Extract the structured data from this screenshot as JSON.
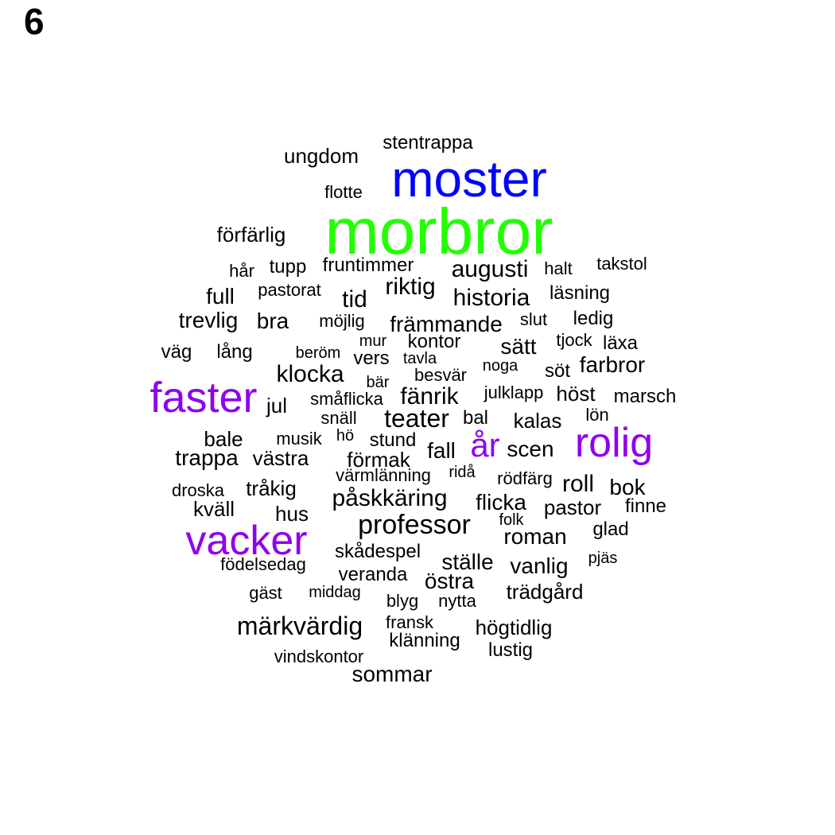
{
  "panel_label": "6",
  "colors": {
    "primary": "#22ff00",
    "secondary": "#0000ff",
    "accent": "#8f00ee",
    "default": "#000000"
  },
  "words": [
    {
      "text": "morbror",
      "weight": "primary"
    },
    {
      "text": "moster",
      "weight": "secondary"
    },
    {
      "text": "faster",
      "weight": "accent"
    },
    {
      "text": "vacker",
      "weight": "accent"
    },
    {
      "text": "rolig",
      "weight": "accent"
    },
    {
      "text": "år",
      "weight": "accent"
    },
    {
      "text": "stentrappa"
    },
    {
      "text": "ungdom"
    },
    {
      "text": "flotte"
    },
    {
      "text": "förfärlig"
    },
    {
      "text": "hår"
    },
    {
      "text": "tupp"
    },
    {
      "text": "fruntimmer"
    },
    {
      "text": "augusti"
    },
    {
      "text": "halt"
    },
    {
      "text": "takstol"
    },
    {
      "text": "full"
    },
    {
      "text": "pastorat"
    },
    {
      "text": "riktig"
    },
    {
      "text": "tid"
    },
    {
      "text": "historia"
    },
    {
      "text": "läsning"
    },
    {
      "text": "trevlig"
    },
    {
      "text": "bra"
    },
    {
      "text": "möjlig"
    },
    {
      "text": "främmande"
    },
    {
      "text": "slut"
    },
    {
      "text": "ledig"
    },
    {
      "text": "väg"
    },
    {
      "text": "lång"
    },
    {
      "text": "beröm"
    },
    {
      "text": "mur"
    },
    {
      "text": "vers"
    },
    {
      "text": "kontor"
    },
    {
      "text": "tavla"
    },
    {
      "text": "sätt"
    },
    {
      "text": "tjock"
    },
    {
      "text": "läxa"
    },
    {
      "text": "noga"
    },
    {
      "text": "söt"
    },
    {
      "text": "farbror"
    },
    {
      "text": "klocka"
    },
    {
      "text": "bär"
    },
    {
      "text": "besvär"
    },
    {
      "text": "jul"
    },
    {
      "text": "småflicka"
    },
    {
      "text": "fänrik"
    },
    {
      "text": "julklapp"
    },
    {
      "text": "höst"
    },
    {
      "text": "marsch"
    },
    {
      "text": "snäll"
    },
    {
      "text": "teater"
    },
    {
      "text": "bal"
    },
    {
      "text": "kalas"
    },
    {
      "text": "lön"
    },
    {
      "text": "bale"
    },
    {
      "text": "musik"
    },
    {
      "text": "hö"
    },
    {
      "text": "stund"
    },
    {
      "text": "trappa"
    },
    {
      "text": "västra"
    },
    {
      "text": "förmak"
    },
    {
      "text": "fall"
    },
    {
      "text": "scen"
    },
    {
      "text": "värmlänning"
    },
    {
      "text": "ridå"
    },
    {
      "text": "rödfärg"
    },
    {
      "text": "roll"
    },
    {
      "text": "bok"
    },
    {
      "text": "droska"
    },
    {
      "text": "tråkig"
    },
    {
      "text": "kväll"
    },
    {
      "text": "hus"
    },
    {
      "text": "påskkäring"
    },
    {
      "text": "flicka"
    },
    {
      "text": "pastor"
    },
    {
      "text": "finne"
    },
    {
      "text": "professor"
    },
    {
      "text": "folk"
    },
    {
      "text": "roman"
    },
    {
      "text": "glad"
    },
    {
      "text": "skådespel"
    },
    {
      "text": "födelsedag"
    },
    {
      "text": "ställe"
    },
    {
      "text": "vanlig"
    },
    {
      "text": "pjäs"
    },
    {
      "text": "veranda"
    },
    {
      "text": "östra"
    },
    {
      "text": "gäst"
    },
    {
      "text": "middag"
    },
    {
      "text": "trädgård"
    },
    {
      "text": "blyg"
    },
    {
      "text": "nytta"
    },
    {
      "text": "märkvärdig"
    },
    {
      "text": "fransk"
    },
    {
      "text": "högtidlig"
    },
    {
      "text": "klänning"
    },
    {
      "text": "lustig"
    },
    {
      "text": "vindskontor"
    },
    {
      "text": "sommar"
    }
  ]
}
